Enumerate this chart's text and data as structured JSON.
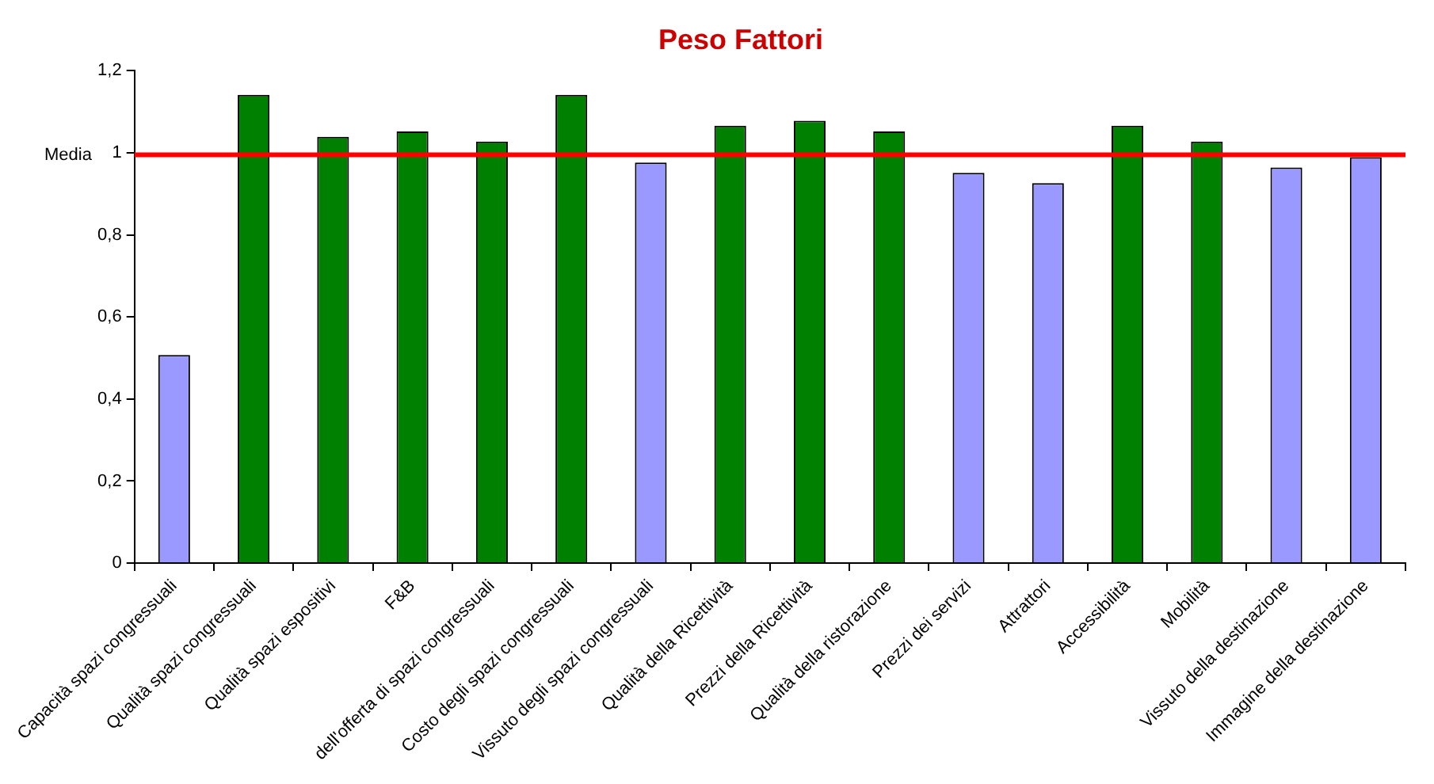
{
  "chart_data": {
    "type": "bar",
    "title": "Peso Fattori",
    "categories": [
      "Capacità spazi congressuali",
      "Qualità spazi congressuali",
      "Qualità spazi espositivi",
      "F&B",
      "dell'offerta di spazi congressuali",
      "Costo degli spazi congressuali",
      "Vissuto degli spazi congressuali",
      "Qualità della Ricettività",
      "Prezzi della Ricettività",
      "Qualità della ristorazione",
      "Prezzi dei servizi",
      "Attrattori",
      "Accessibilità",
      "Mobilità",
      "Vissuto della destinazione",
      "Immagine della destinazione"
    ],
    "values": [
      0.507,
      1.141,
      1.039,
      1.052,
      1.027,
      1.141,
      0.976,
      1.066,
      1.078,
      1.052,
      0.951,
      0.926,
      1.066,
      1.027,
      0.964,
      0.989
    ],
    "colors": [
      "#9999ff",
      "#008000",
      "#008000",
      "#008000",
      "#008000",
      "#008000",
      "#9999ff",
      "#008000",
      "#008000",
      "#008000",
      "#9999ff",
      "#9999ff",
      "#008000",
      "#008000",
      "#9999ff",
      "#9999ff"
    ],
    "ylim": [
      0,
      1.2
    ],
    "yticks": [
      0,
      {
        "value": 0.2,
        "label": "0,2"
      },
      {
        "value": 0.4,
        "label": "0,4"
      },
      {
        "value": 0.6,
        "label": "0,6"
      },
      {
        "value": 0.8,
        "label": "0,8"
      },
      1,
      {
        "value": 1.2,
        "label": "1,2"
      }
    ],
    "ref_lines": [
      {
        "axis": "y",
        "value": 0.995,
        "label": "Media",
        "color": "#ff0000"
      }
    ],
    "grid": false,
    "legend": false
  }
}
